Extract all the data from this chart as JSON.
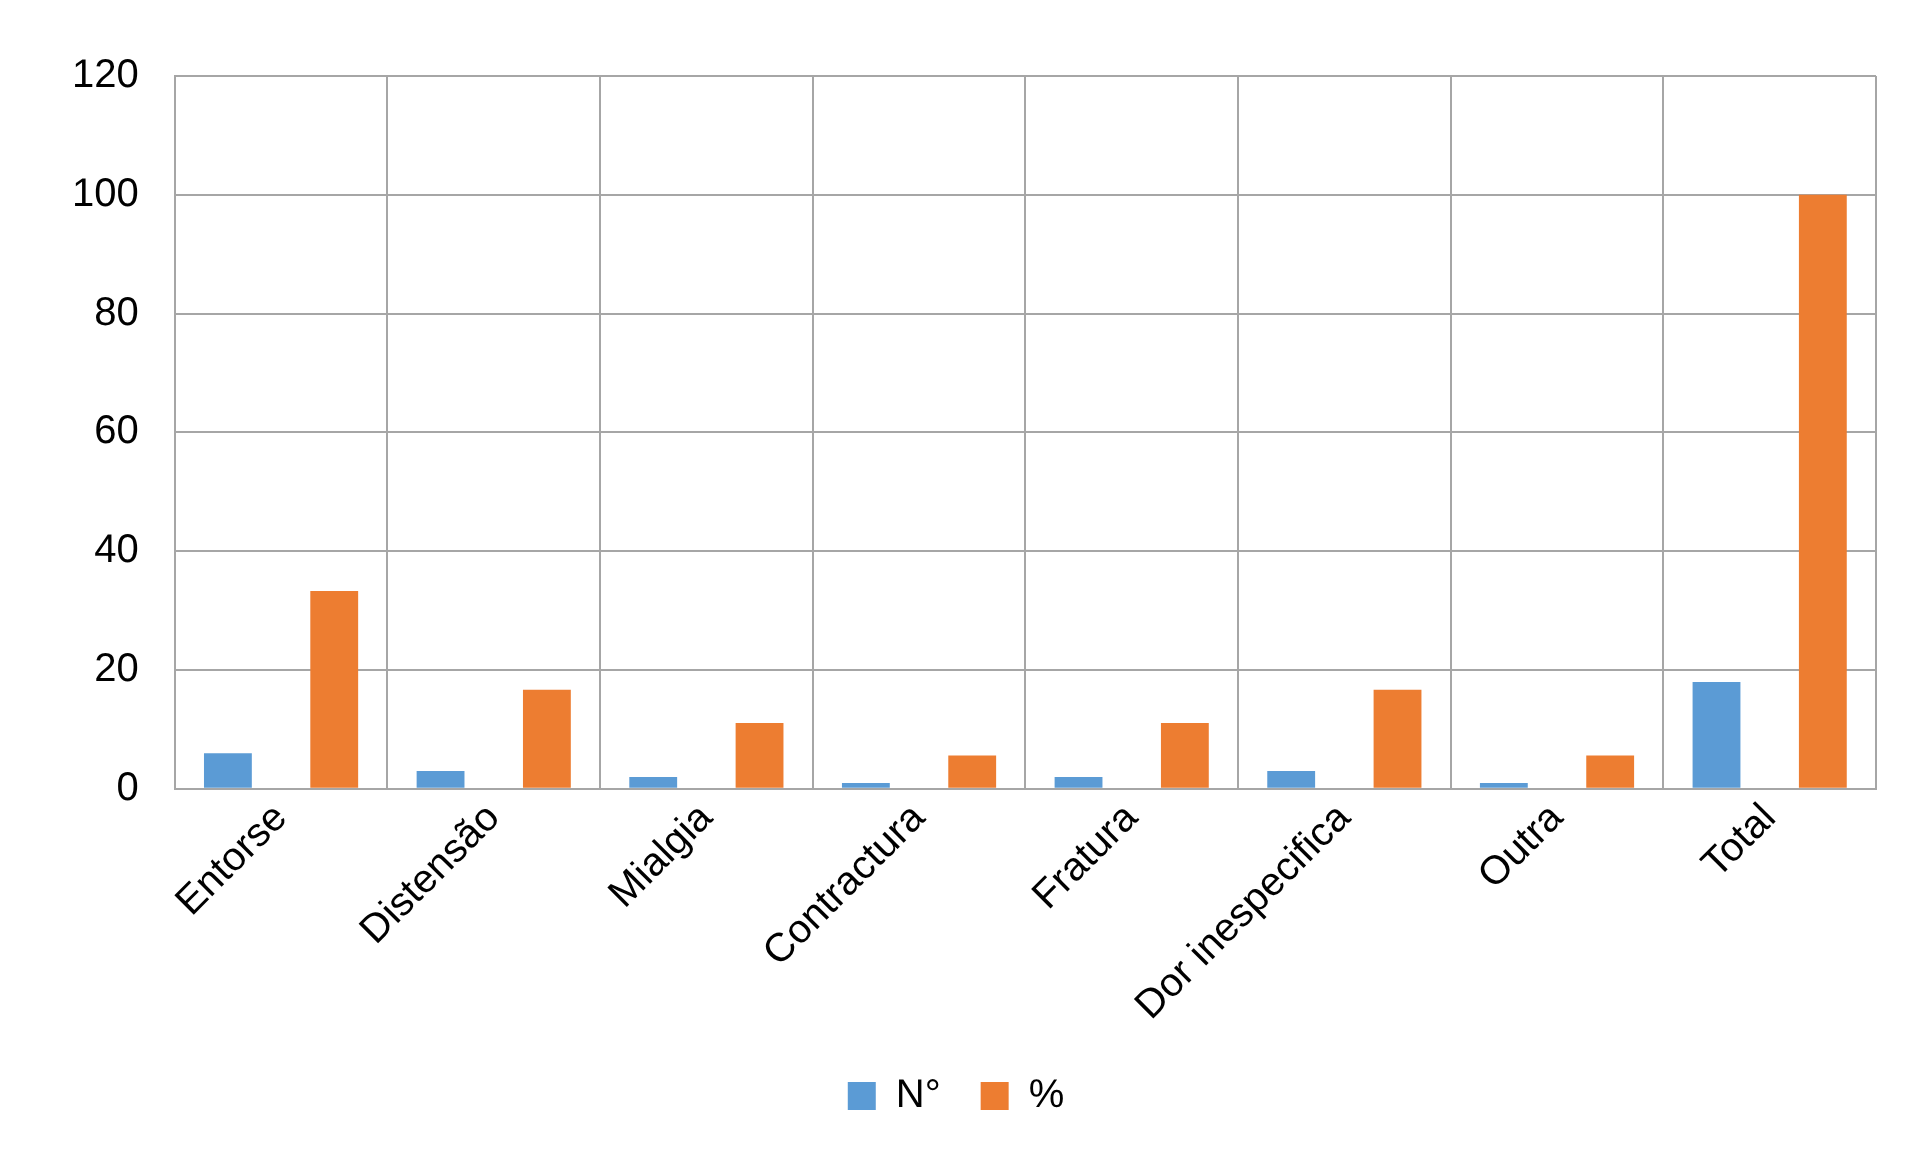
{
  "chart_data": {
    "type": "bar",
    "categories": [
      "Entorse",
      "Distensão",
      "Mialgia",
      "Contractura",
      "Fratura",
      "Dor inespecifica",
      "Outra",
      "Total"
    ],
    "series": [
      {
        "name": "N°",
        "color": "#5b9bd5",
        "values": [
          6,
          3,
          2,
          1,
          2,
          3,
          1,
          18
        ]
      },
      {
        "name": "%",
        "color": "#ed7d31",
        "values": [
          33.3,
          16.7,
          11.1,
          5.6,
          11.1,
          16.7,
          5.6,
          100
        ]
      }
    ],
    "ylim": [
      0,
      120
    ],
    "yticks": [
      0,
      20,
      40,
      60,
      80,
      100,
      120
    ],
    "grid": true,
    "legend": "bottom"
  }
}
